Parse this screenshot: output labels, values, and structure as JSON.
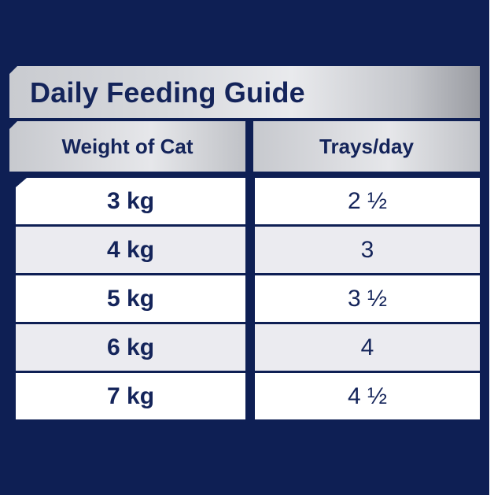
{
  "title": "Daily Feeding Guide",
  "headers": {
    "weight": "Weight of Cat",
    "trays": "Trays/day"
  },
  "rows": [
    {
      "weight": "3 kg",
      "trays": "2 ½"
    },
    {
      "weight": "4 kg",
      "trays": "3"
    },
    {
      "weight": "5 kg",
      "trays": "3 ½"
    },
    {
      "weight": "6 kg",
      "trays": "4"
    },
    {
      "weight": "7 kg",
      "trays": "4 ½"
    }
  ],
  "colors": {
    "navy": "#0e1f54",
    "text": "#14245a",
    "row_alt": "#ebebf0"
  }
}
